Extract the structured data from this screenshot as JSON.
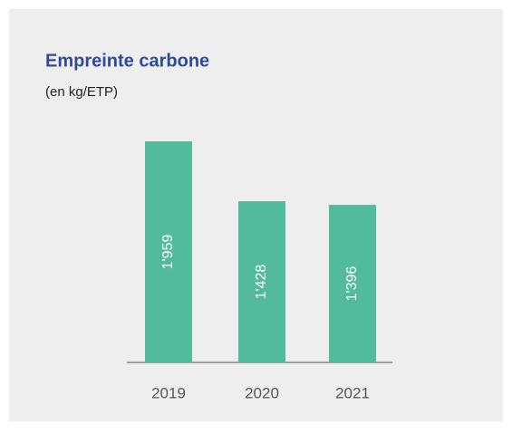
{
  "chart_data": {
    "type": "bar",
    "title": "Empreinte carbone",
    "subtitle": "(en kg/ETP)",
    "categories": [
      "2019",
      "2020",
      "2021"
    ],
    "values": [
      1959,
      1428,
      1396
    ],
    "value_labels": [
      "1'959",
      "1'428",
      "1'396"
    ],
    "color": "#52bb99"
  }
}
